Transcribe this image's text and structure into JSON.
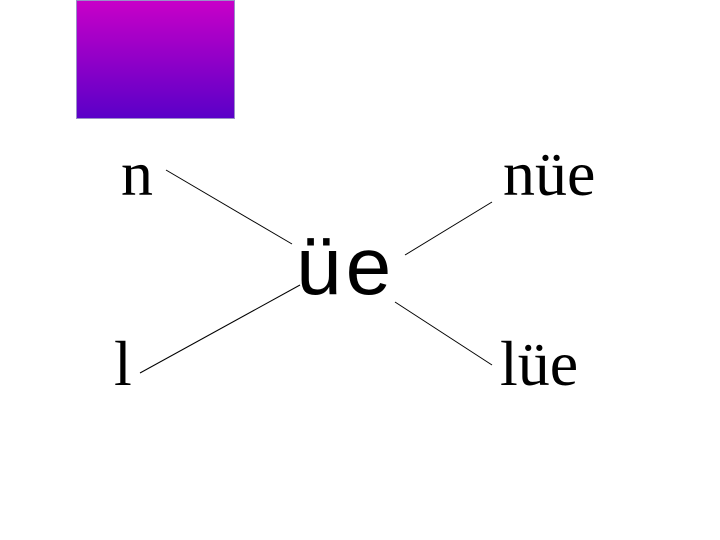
{
  "swatch": {
    "gradient_top": "#c800c8",
    "gradient_bottom": "#5a00c8"
  },
  "center": "üe",
  "initials": {
    "top": "n",
    "bottom": "l"
  },
  "results": {
    "top": "nüe",
    "bottom": "lüe"
  },
  "colors": {
    "text": "#000000",
    "lines": "#000000"
  }
}
